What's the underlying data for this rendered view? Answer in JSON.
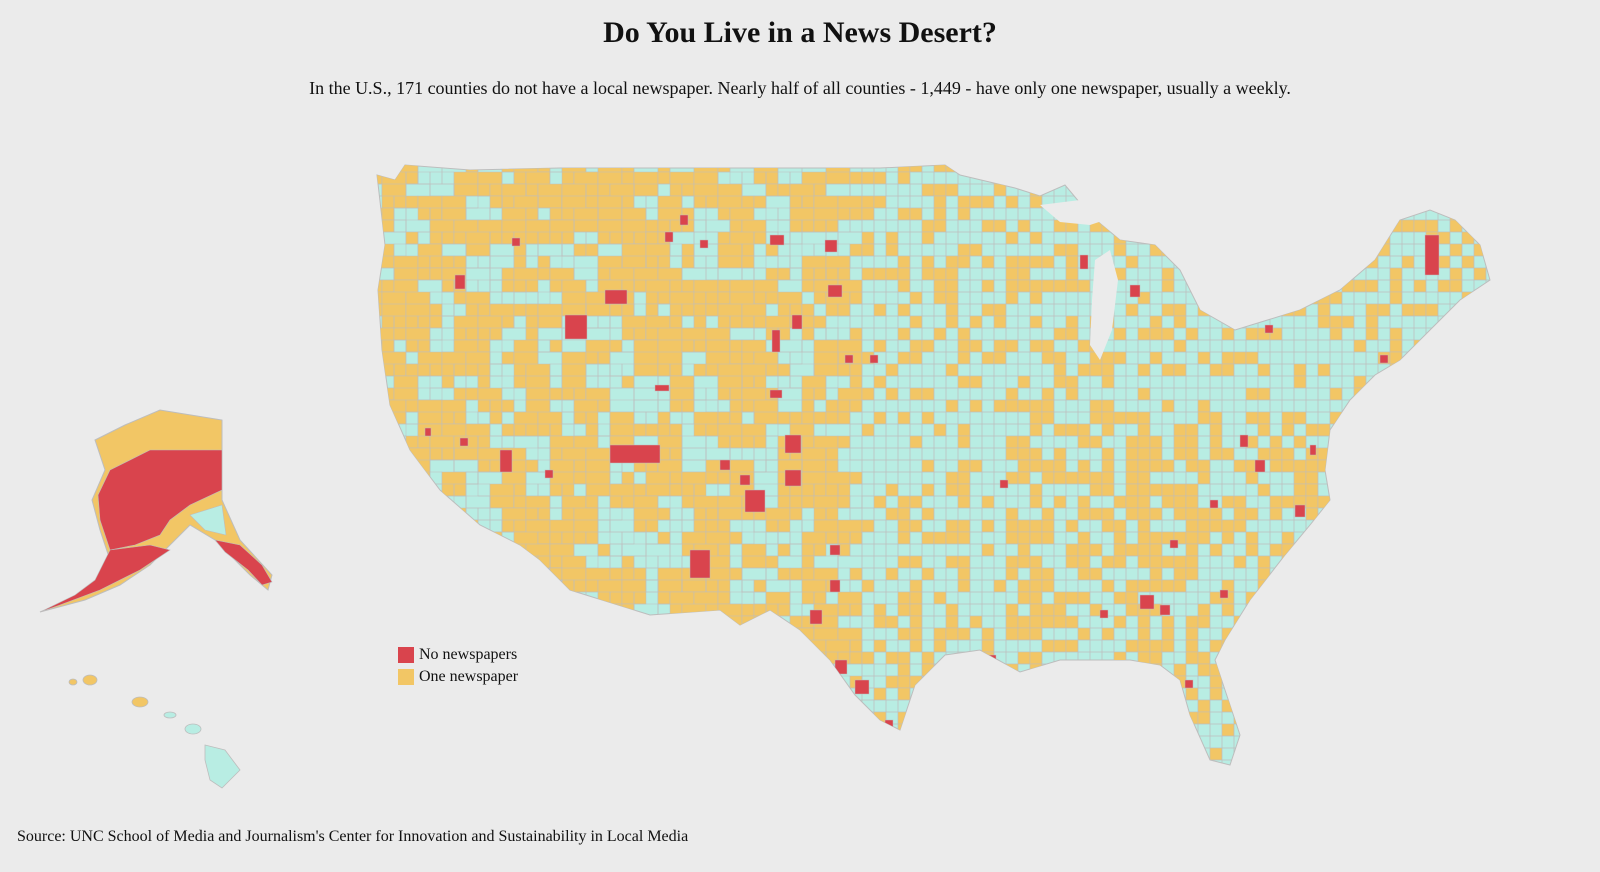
{
  "title": "Do You Live in a News Desert?",
  "subtitle": "In the U.S., 171 counties do not have a local newspaper. Nearly half of all counties - 1,449 - have only one newspaper, usually a weekly.",
  "legend": {
    "items": [
      {
        "label": "No newspapers",
        "color": "#d9444d"
      },
      {
        "label": "One newspaper",
        "color": "#f2c665"
      }
    ]
  },
  "colors": {
    "background": "#ebebeb",
    "other": "#b8ede3",
    "border": "#bdbdbd"
  },
  "source": "Source: UNC School of Media and Journalism's Center for Innovation and Sustainability in Local Media"
}
